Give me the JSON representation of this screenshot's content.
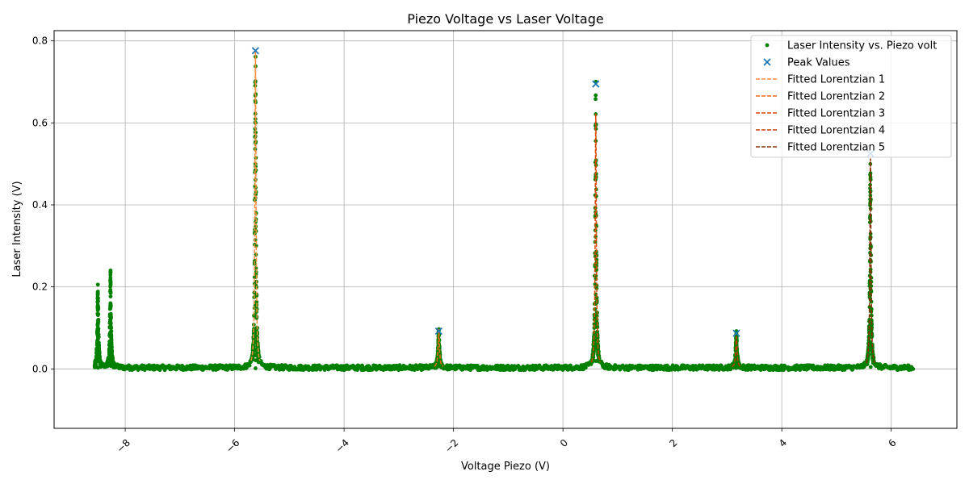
{
  "chart_data": {
    "type": "scatter",
    "title": "Piezo Voltage vs Laser Voltage",
    "xlabel": "Voltage Piezo (V)",
    "ylabel": "Laser Intensity (V)",
    "xlim": [
      -9.3,
      7.2
    ],
    "ylim": [
      -0.145,
      0.825
    ],
    "xticks": [
      -8,
      -6,
      -4,
      -2,
      0,
      2,
      4,
      6
    ],
    "xtick_labels": [
      "−8",
      "−6",
      "−4",
      "−2",
      "0",
      "2",
      "4",
      "6"
    ],
    "yticks": [
      0.0,
      0.2,
      0.4,
      0.6,
      0.8
    ],
    "ytick_labels": [
      "0.0",
      "0.2",
      "0.4",
      "0.6",
      "0.8"
    ],
    "grid": true,
    "legend_position": "top-right",
    "scatter_color": "#008000",
    "peak_color": "#1f77b4",
    "x_range": [
      -8.5,
      6.4
    ],
    "baseline": 0.003,
    "spectrum_peaks": [
      {
        "x": -8.5,
        "amplitude": 0.2,
        "width": 0.012
      },
      {
        "x": -8.27,
        "amplitude": 0.23,
        "width": 0.012
      },
      {
        "x": -5.62,
        "amplitude": 0.775,
        "width": 0.012
      },
      {
        "x": -2.27,
        "amplitude": 0.09,
        "width": 0.015
      },
      {
        "x": 0.6,
        "amplitude": 0.695,
        "width": 0.012
      },
      {
        "x": 3.17,
        "amplitude": 0.085,
        "width": 0.015
      },
      {
        "x": 5.62,
        "amplitude": 0.525,
        "width": 0.012
      }
    ],
    "peak_values": [
      {
        "x": -5.62,
        "y": 0.776
      },
      {
        "x": -2.27,
        "y": 0.092
      },
      {
        "x": 0.6,
        "y": 0.695
      },
      {
        "x": 3.17,
        "y": 0.087
      },
      {
        "x": 5.62,
        "y": 0.525
      }
    ],
    "series": [
      {
        "name": "Laser Intensity vs. Piezo volt",
        "kind": "scatter",
        "color": "#008000"
      },
      {
        "name": "Peak Values",
        "kind": "marker-x",
        "color": "#1f77b4"
      },
      {
        "name": "Fitted Lorentzian 1",
        "kind": "dashed-line",
        "color": "#fd8d3c",
        "center": -5.62,
        "amplitude": 0.776,
        "width": 0.012
      },
      {
        "name": "Fitted Lorentzian 2",
        "kind": "dashed-line",
        "color": "#f16913",
        "center": -2.27,
        "amplitude": 0.092,
        "width": 0.015
      },
      {
        "name": "Fitted Lorentzian 3",
        "kind": "dashed-line",
        "color": "#d94801",
        "center": 0.6,
        "amplitude": 0.62,
        "width": 0.012
      },
      {
        "name": "Fitted Lorentzian 4",
        "kind": "dashed-line",
        "color": "#c13b04",
        "center": 3.17,
        "amplitude": 0.075,
        "width": 0.015
      },
      {
        "name": "Fitted Lorentzian 5",
        "kind": "dashed-line",
        "color": "#8c2d04",
        "center": 5.62,
        "amplitude": 0.51,
        "width": 0.012
      }
    ]
  }
}
